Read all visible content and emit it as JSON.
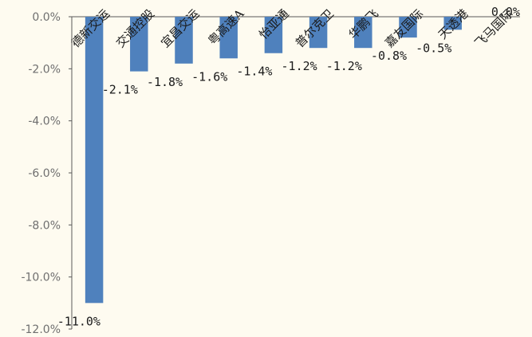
{
  "chart_data": {
    "type": "bar",
    "categories": [
      "德新交运",
      "交通控股",
      "宜昌交运",
      "粤高速A",
      "怡亚通",
      "普尔克卫",
      "华鹏飞",
      "嘉友国际",
      "天透港",
      "飞马国际"
    ],
    "values": [
      -11.0,
      -2.1,
      -1.8,
      -1.6,
      -1.4,
      -1.2,
      -1.2,
      -0.8,
      -0.5,
      0.0
    ],
    "value_labels": [
      "-11.0%",
      "-2.1%",
      "-1.8%",
      "-1.6%",
      "-1.4%",
      "-1.2%",
      "-1.2%",
      "-0.8%",
      "-0.5%",
      "0.0%"
    ],
    "ylim": [
      -12,
      0
    ],
    "yticks": [
      0,
      -2,
      -4,
      -6,
      -8,
      -10,
      -12
    ],
    "ytick_labels": [
      "0.0%",
      "-2.0%",
      "-4.0%",
      "-6.0%",
      "-8.0%",
      "-10.0%",
      "-12.0%"
    ],
    "title": "",
    "xlabel": "",
    "ylabel": "",
    "grid": false,
    "colors": {
      "bar": "#4f81bd",
      "axis": "#595959",
      "background": "#fefbf0"
    }
  }
}
